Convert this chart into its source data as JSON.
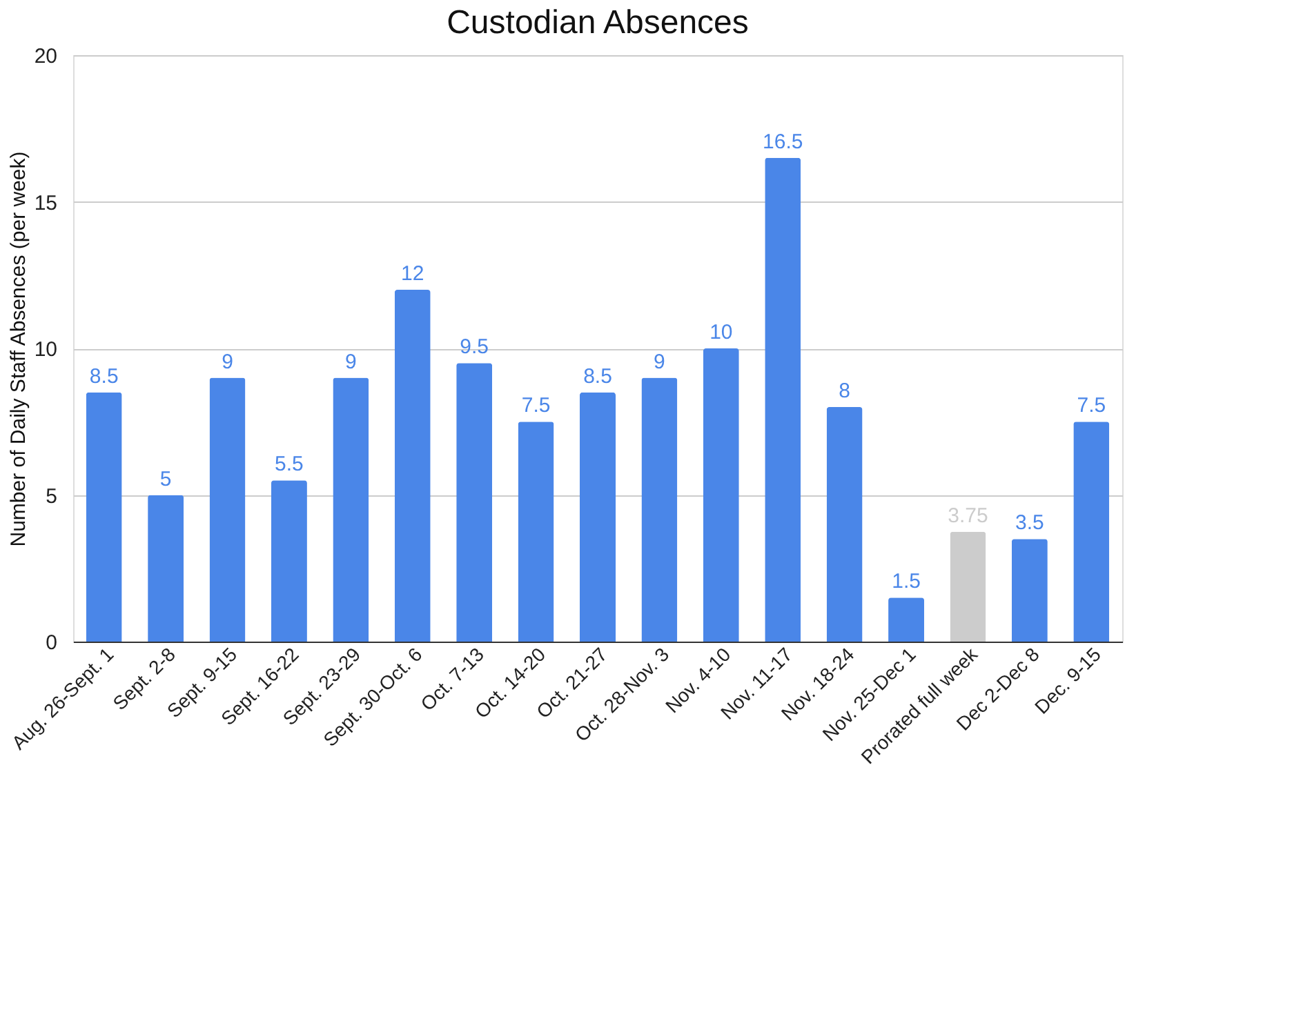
{
  "chart_data": {
    "type": "bar",
    "title": "Custodian Absences",
    "ylabel": "Number of Daily Staff Absences (per week)",
    "categories": [
      "Aug. 26-Sept. 1",
      "Sept. 2-8",
      "Sept. 9-15",
      "Sept. 16-22",
      "Sept. 23-29",
      "Sept. 30-Oct. 6",
      "Oct. 7-13",
      "Oct. 14-20",
      "Oct. 21-27",
      "Oct. 28-Nov. 3",
      "Nov. 4-10",
      "Nov. 11-17",
      "Nov. 18-24",
      "Nov. 25-Dec 1",
      "Prorated full week",
      "Dec 2-Dec 8",
      "Dec. 9-15"
    ],
    "values": [
      8.5,
      5,
      9,
      5.5,
      9,
      12,
      9.5,
      7.5,
      8.5,
      9,
      10,
      16.5,
      8,
      1.5,
      3.75,
      3.5,
      7.5
    ],
    "colors": [
      "#4a86e8",
      "#4a86e8",
      "#4a86e8",
      "#4a86e8",
      "#4a86e8",
      "#4a86e8",
      "#4a86e8",
      "#4a86e8",
      "#4a86e8",
      "#4a86e8",
      "#4a86e8",
      "#4a86e8",
      "#4a86e8",
      "#4a86e8",
      "#cccccc",
      "#4a86e8",
      "#4a86e8"
    ],
    "ylim": [
      0,
      20
    ],
    "yticks": [
      0,
      5,
      10,
      15,
      20
    ],
    "grid": "y",
    "data_labels": true
  }
}
